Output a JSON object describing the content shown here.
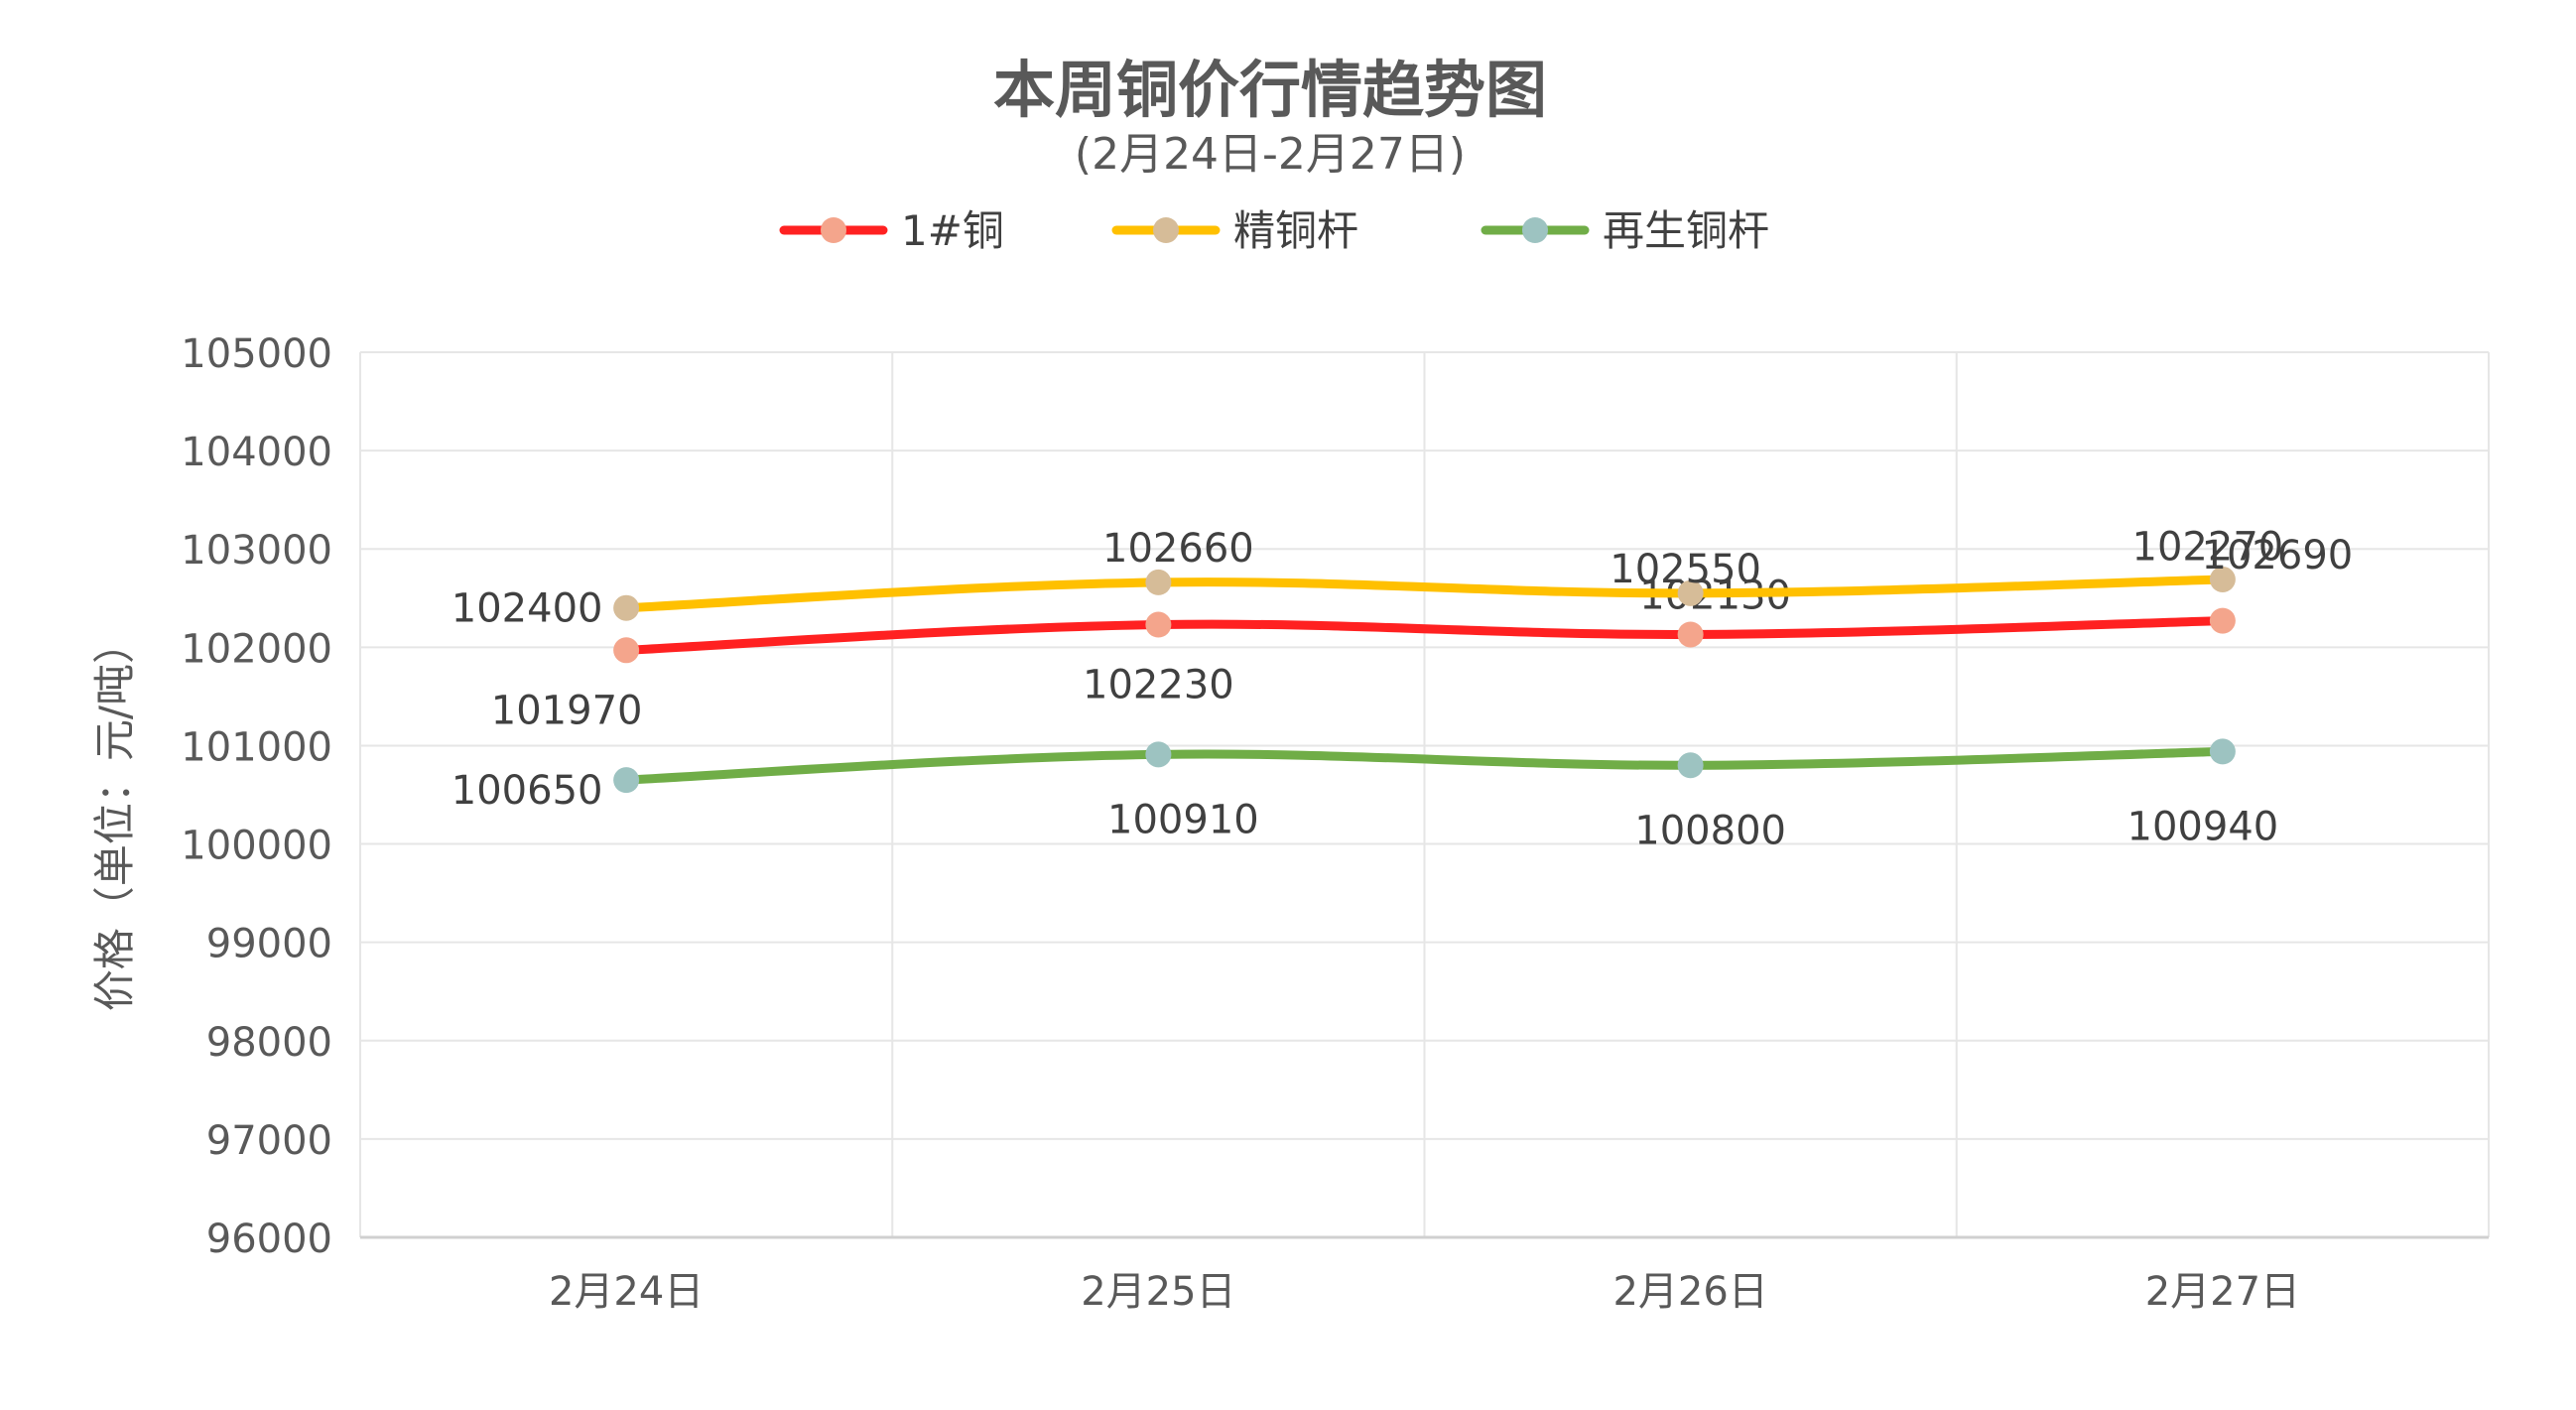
{
  "chart_data": {
    "type": "line",
    "title": "本周铜价行情趋势图",
    "subtitle": "(2月24日-2月27日)",
    "ylabel": "价格（单位：元/吨）",
    "xlabel": "",
    "categories": [
      "2月24日",
      "2月25日",
      "2月26日",
      "2月27日"
    ],
    "ylim": [
      96000,
      105000
    ],
    "yticks": [
      "105000",
      "104000",
      "103000",
      "102000",
      "101000",
      "100000",
      "99000",
      "98000",
      "97000",
      "96000"
    ],
    "grid": true,
    "legend_position": "top-center",
    "series": [
      {
        "name": "1#铜",
        "line_color": "#ff2121",
        "marker_color": "#f4a58c",
        "values": [
          101970,
          102230,
          102130,
          102270
        ],
        "labels": [
          "101970",
          "102230",
          "102130",
          "102270"
        ]
      },
      {
        "name": "精铜杆",
        "line_color": "#ffc000",
        "marker_color": "#d6bc98",
        "values": [
          102400,
          102660,
          102550,
          102690
        ],
        "labels": [
          "102400",
          "102660",
          "102550",
          "102690"
        ]
      },
      {
        "name": "再生铜杆",
        "line_color": "#70ad47",
        "marker_color": "#9dc3c1",
        "values": [
          100650,
          100910,
          100800,
          100940
        ],
        "labels": [
          "100650",
          "100910",
          "100800",
          "100940"
        ]
      }
    ]
  }
}
